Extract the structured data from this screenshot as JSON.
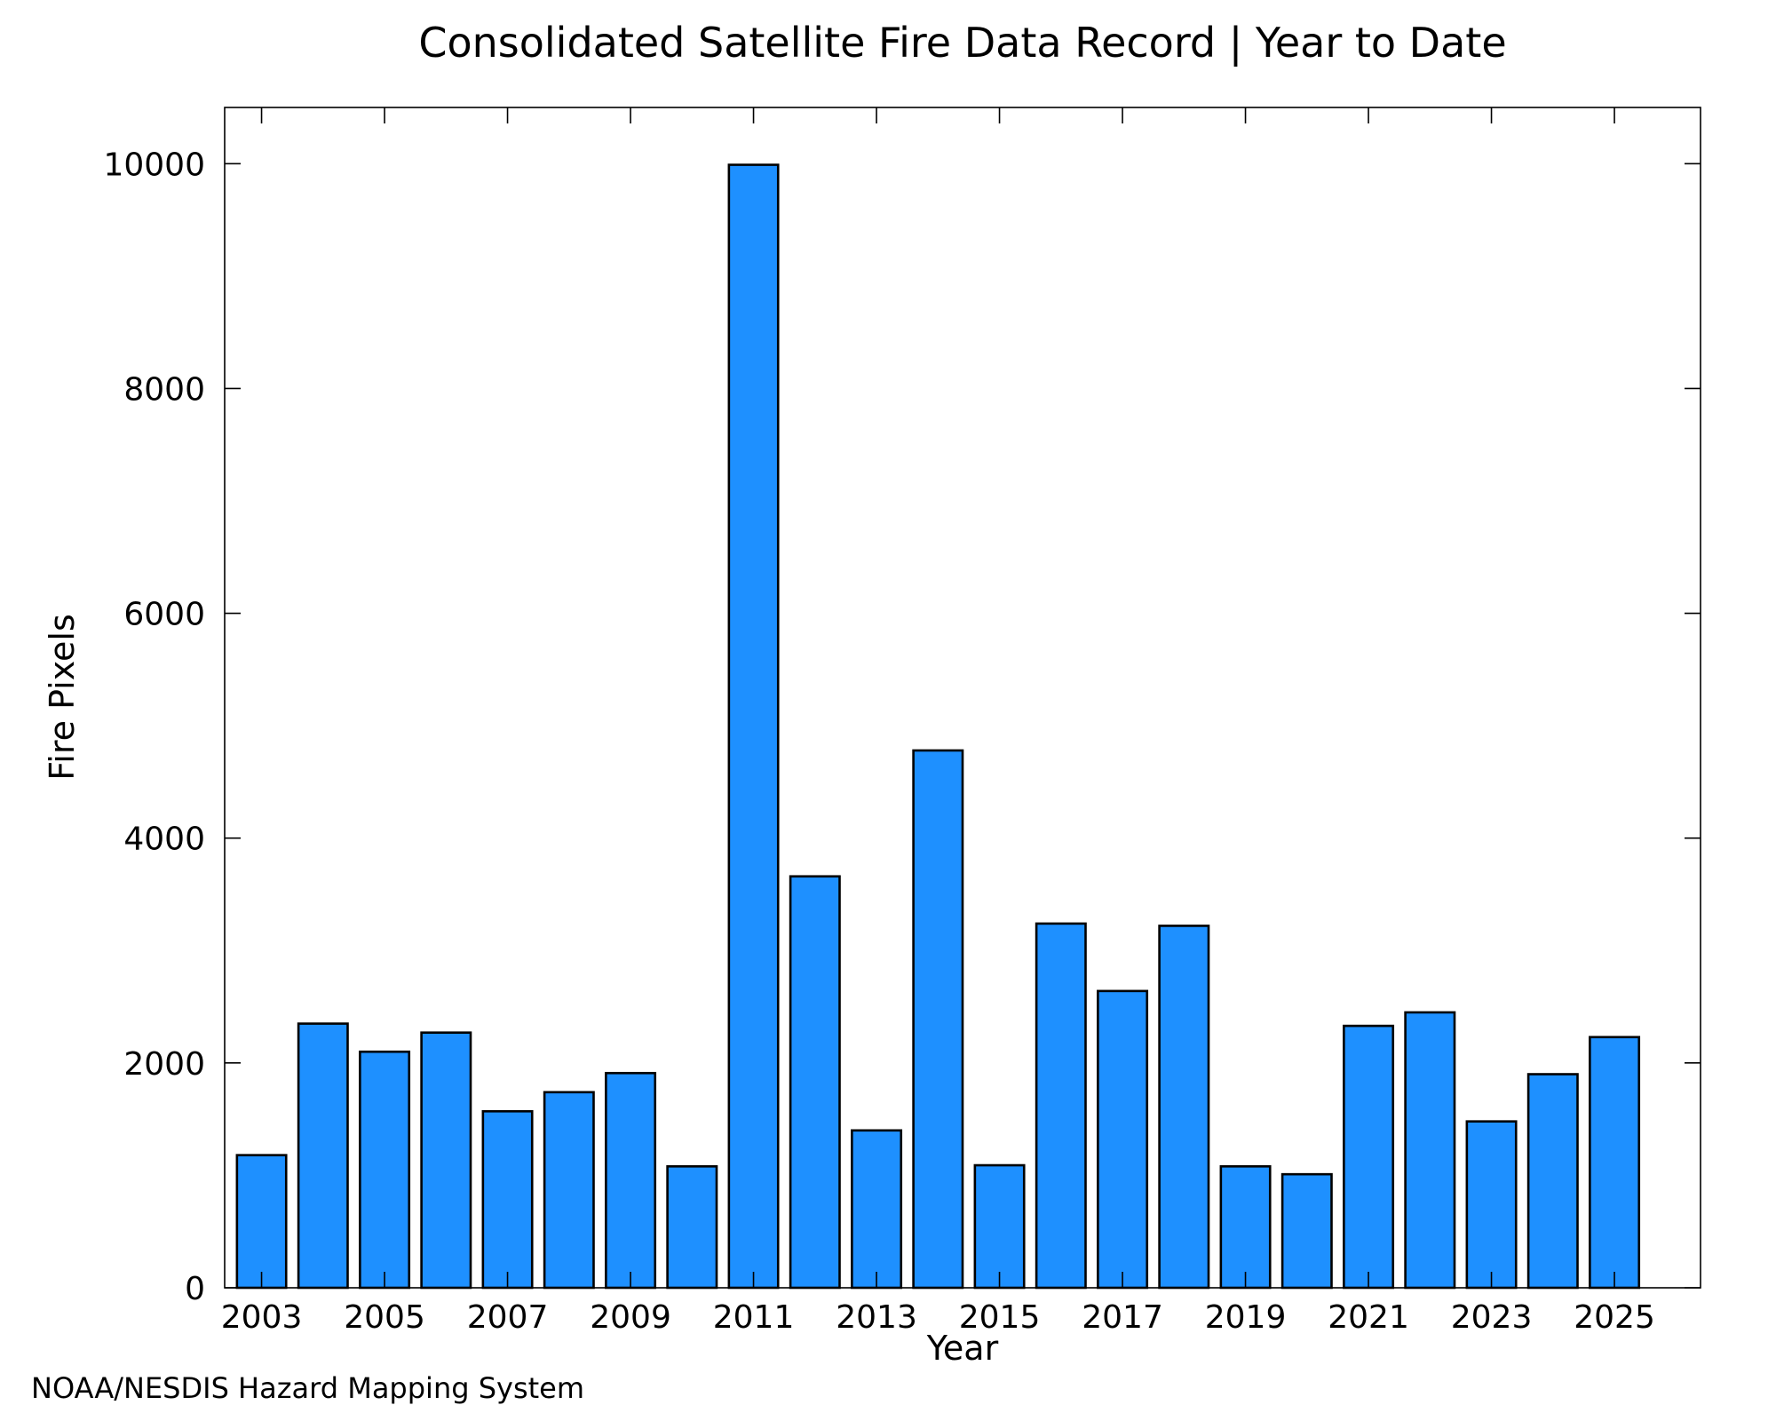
{
  "chart_data": {
    "type": "bar",
    "title": "Consolidated Satellite Fire Data Record | Year to Date",
    "xlabel": "Year",
    "ylabel": "Fire Pixels",
    "categories": [
      2003,
      2004,
      2005,
      2006,
      2007,
      2008,
      2009,
      2010,
      2011,
      2012,
      2013,
      2014,
      2015,
      2016,
      2017,
      2018,
      2019,
      2020,
      2021,
      2022,
      2023,
      2024,
      2025
    ],
    "values": [
      1180,
      2350,
      2100,
      2270,
      1570,
      1740,
      1910,
      1080,
      9990,
      3660,
      1400,
      4780,
      1090,
      3240,
      2640,
      3220,
      1080,
      1010,
      2330,
      2450,
      1480,
      1900,
      2230
    ],
    "xticks": [
      "2003",
      "2005",
      "2007",
      "2009",
      "2011",
      "2013",
      "2015",
      "2017",
      "2019",
      "2021",
      "2023",
      "2025"
    ],
    "yticks": [
      "0",
      "2000",
      "4000",
      "6000",
      "8000",
      "10000"
    ],
    "ylim": [
      0,
      10500
    ],
    "xlim": [
      2002.4,
      2026.4
    ],
    "grid": false,
    "bar_color": "#1e90ff",
    "bar_edge_color": "#000000"
  },
  "credit": "NOAA/NESDIS Hazard Mapping System",
  "colors": {
    "credit_text": "#808080"
  }
}
